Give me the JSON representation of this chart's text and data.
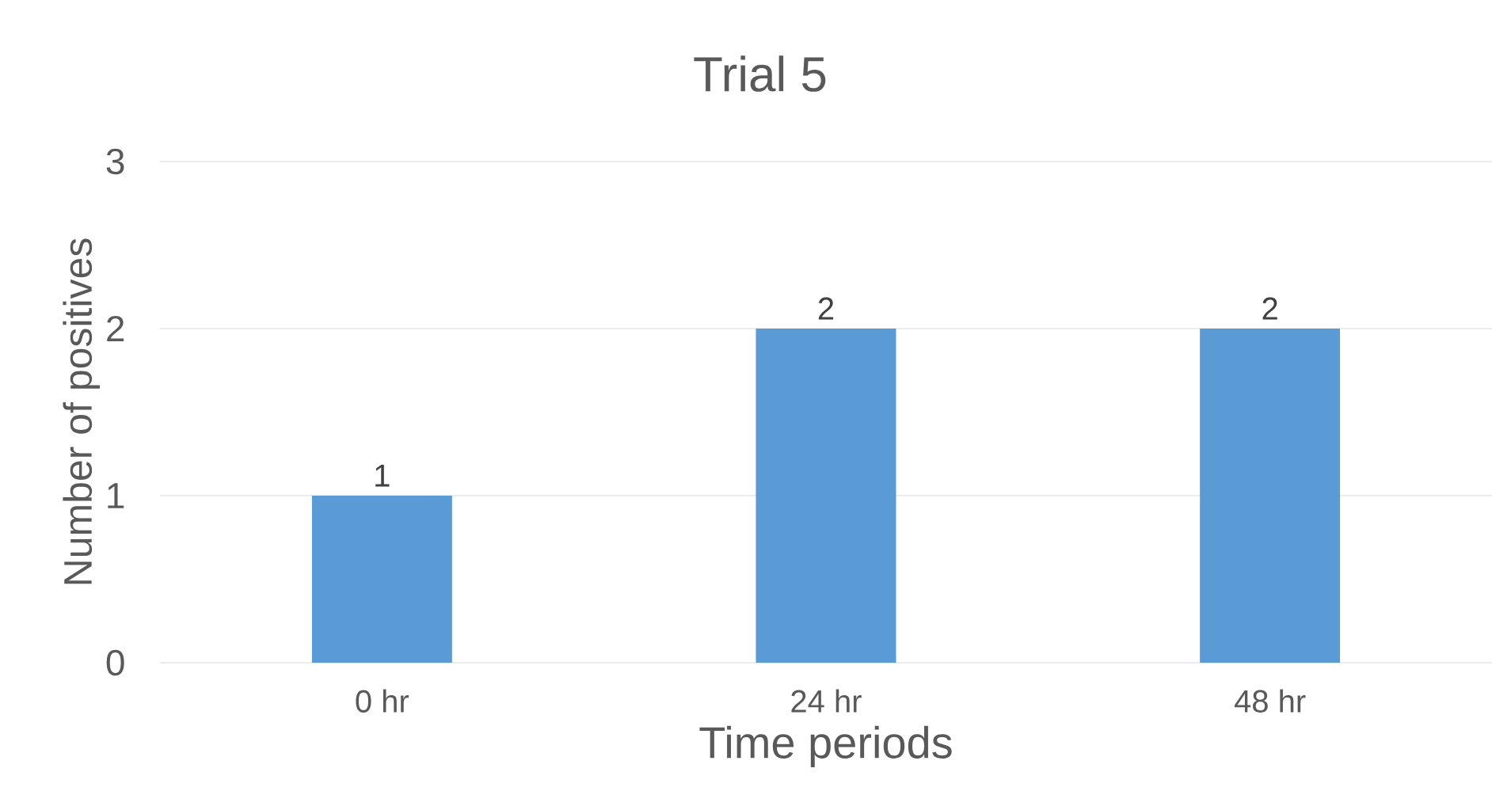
{
  "chart_data": {
    "type": "bar",
    "title": "Trial 5",
    "xlabel": "Time periods",
    "ylabel": "Number of positives",
    "categories": [
      "0 hr",
      "24 hr",
      "48 hr"
    ],
    "values": [
      1,
      2,
      2
    ],
    "color": "#5b9bd5",
    "ylim": [
      0,
      3
    ],
    "yticks": [
      0,
      1,
      2,
      3
    ],
    "grid": "y",
    "data_labels": true
  }
}
